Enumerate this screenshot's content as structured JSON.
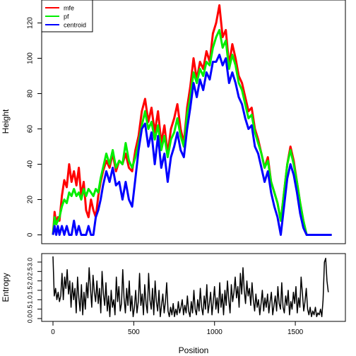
{
  "chart_data": [
    {
      "type": "line",
      "title": "",
      "xlabel": "",
      "ylabel": "Height",
      "xlim": [
        -70,
        1810
      ],
      "ylim": [
        -5,
        133
      ],
      "x_ticks": [],
      "y_ticks": [
        0,
        20,
        40,
        60,
        80,
        100,
        120
      ],
      "y_tick_labels": [
        "0",
        "20",
        "40",
        "60",
        "80",
        "100",
        "120"
      ],
      "legend": {
        "placement": "top-left"
      },
      "series": [
        {
          "name": "mfe",
          "color": "#ff0000",
          "x": [
            0,
            15,
            30,
            45,
            60,
            75,
            90,
            105,
            120,
            135,
            150,
            165,
            180,
            195,
            210,
            225,
            240,
            255,
            270,
            285,
            300,
            315,
            330,
            345,
            360,
            375,
            390,
            405,
            420,
            435,
            450,
            465,
            480,
            495,
            510,
            525,
            540,
            555,
            570,
            585,
            600,
            615,
            630,
            645,
            660,
            675,
            690,
            705,
            720,
            735,
            750,
            765,
            780,
            795,
            810,
            825,
            840,
            855,
            870,
            885,
            900,
            915,
            930,
            945,
            960,
            975,
            990,
            1005,
            1020,
            1035,
            1050,
            1065,
            1080,
            1095,
            1110,
            1125,
            1140,
            1155,
            1170,
            1185,
            1200,
            1215,
            1230,
            1245,
            1260,
            1275,
            1290,
            1305,
            1320,
            1335,
            1350,
            1365,
            1380,
            1395,
            1410,
            1425,
            1440,
            1455,
            1470,
            1485,
            1500,
            1515,
            1530,
            1545,
            1560,
            1575,
            1590,
            1605,
            1620,
            1635,
            1650,
            1665,
            1680,
            1695,
            1710,
            1725
          ],
          "values": [
            0,
            12,
            5,
            8,
            20,
            30,
            24,
            38,
            28,
            35,
            24,
            30,
            12,
            16,
            10,
            20,
            14,
            8,
            28,
            35,
            40,
            36,
            42,
            34,
            38,
            42,
            40,
            36,
            45,
            40,
            38,
            32,
            50,
            40,
            44,
            58,
            66,
            76,
            66,
            70,
            62,
            68,
            60,
            64,
            54,
            58,
            48,
            56,
            66,
            76,
            70,
            82,
            68,
            74,
            62,
            70,
            86,
            98,
            90,
            100,
            94,
            104,
            98,
            104,
            110,
            118,
            112,
            122,
            130,
            116,
            110,
            98,
            92,
            84,
            102,
            108,
            96,
            100,
            90,
            80,
            84,
            70,
            66,
            72,
            60,
            54,
            48,
            40,
            44,
            30,
            34,
            18,
            10,
            18,
            30,
            42,
            50,
            40,
            28,
            20,
            8,
            0,
            0,
            0,
            0,
            0,
            0,
            0,
            0,
            0,
            0,
            0,
            0,
            0,
            0,
            0
          ],
          "_note": "values continue to x=1725; trailing entries below"
        }
      ]
    }
  ]
}
